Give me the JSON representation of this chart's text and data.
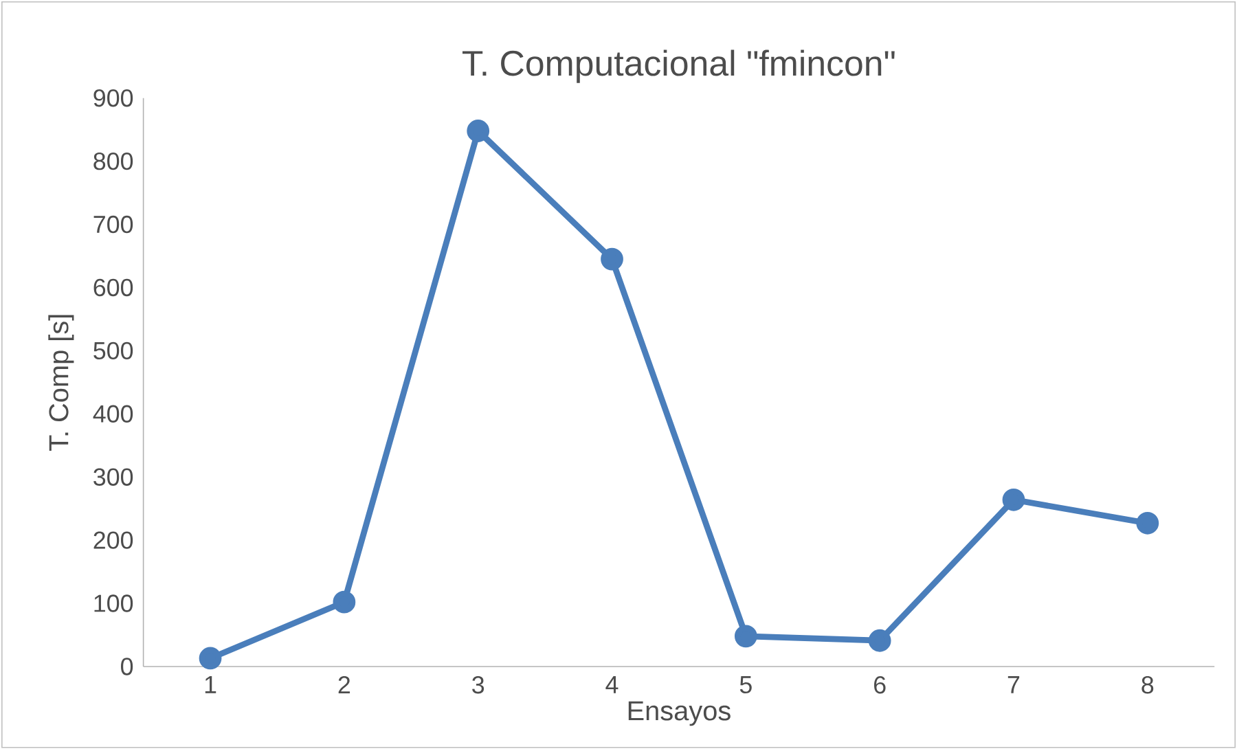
{
  "chart_data": {
    "type": "line",
    "title": "T. Computacional \"fmincon\"",
    "xlabel": "Ensayos",
    "ylabel": "T. Comp [s]",
    "categories": [
      "1",
      "2",
      "3",
      "4",
      "5",
      "6",
      "7",
      "8"
    ],
    "series": [
      {
        "color": "#4a7ebb",
        "values": [
          13,
          102,
          848,
          645,
          48,
          41,
          264,
          227
        ]
      }
    ],
    "ylim": [
      0,
      900
    ],
    "yticks": [
      0,
      100,
      200,
      300,
      400,
      500,
      600,
      700,
      800,
      900
    ],
    "grid": false,
    "marker": "circle",
    "line_style": "solid"
  }
}
